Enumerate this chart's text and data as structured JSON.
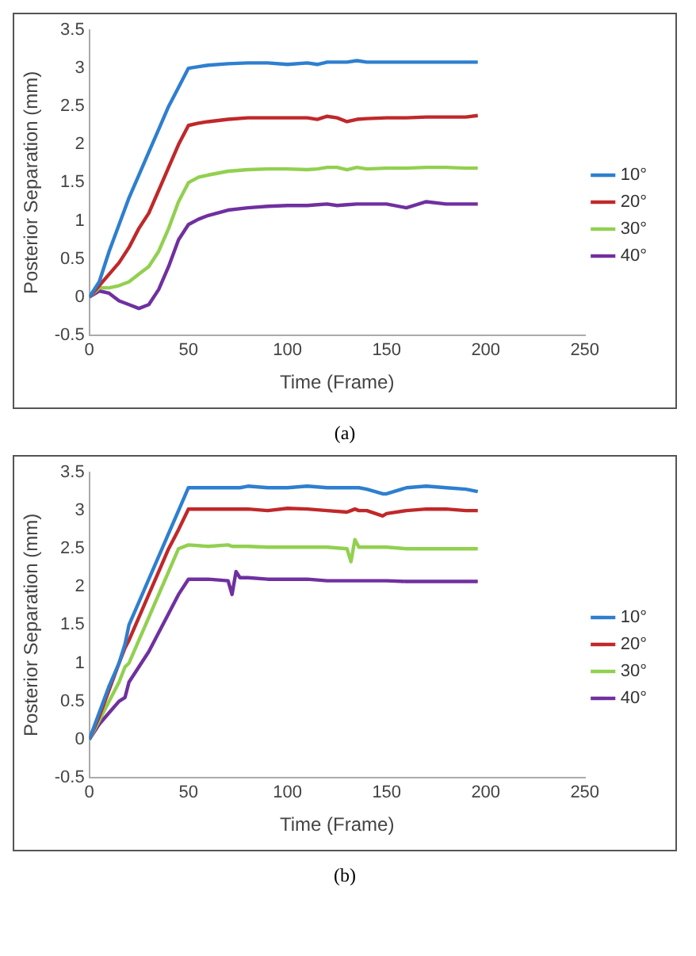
{
  "chart_data": [
    {
      "type": "line",
      "xlabel": "Time (Frame)",
      "ylabel": "Posterior Separation (mm)",
      "annotations": [
        "(a)"
      ],
      "x": [
        0,
        5,
        10,
        15,
        20,
        25,
        30,
        35,
        40,
        45,
        50,
        55,
        60,
        70,
        80,
        90,
        100,
        110,
        115,
        120,
        125,
        130,
        135,
        140,
        150,
        160,
        170,
        180,
        190,
        196
      ],
      "series": [
        {
          "name": "10°",
          "color": "#2e7fcf",
          "values": [
            0,
            0.2,
            0.6,
            0.95,
            1.3,
            1.6,
            1.9,
            2.2,
            2.5,
            2.75,
            3.0,
            3.02,
            3.04,
            3.06,
            3.07,
            3.07,
            3.05,
            3.07,
            3.05,
            3.08,
            3.08,
            3.08,
            3.1,
            3.08,
            3.08,
            3.08,
            3.08,
            3.08,
            3.08,
            3.08
          ]
        },
        {
          "name": "20°",
          "color": "#c0282a",
          "values": [
            0,
            0.15,
            0.3,
            0.45,
            0.65,
            0.9,
            1.1,
            1.4,
            1.7,
            2.0,
            2.25,
            2.28,
            2.3,
            2.33,
            2.35,
            2.35,
            2.35,
            2.35,
            2.33,
            2.37,
            2.35,
            2.3,
            2.33,
            2.34,
            2.35,
            2.35,
            2.36,
            2.36,
            2.36,
            2.38
          ]
        },
        {
          "name": "30°",
          "color": "#92d050",
          "values": [
            0,
            0.12,
            0.12,
            0.15,
            0.2,
            0.3,
            0.4,
            0.6,
            0.9,
            1.25,
            1.5,
            1.57,
            1.6,
            1.65,
            1.67,
            1.68,
            1.68,
            1.67,
            1.68,
            1.7,
            1.7,
            1.67,
            1.7,
            1.68,
            1.69,
            1.69,
            1.7,
            1.7,
            1.69,
            1.69
          ]
        },
        {
          "name": "40°",
          "color": "#7030a0",
          "values": [
            0,
            0.08,
            0.05,
            -0.05,
            -0.1,
            -0.15,
            -0.1,
            0.1,
            0.4,
            0.75,
            0.95,
            1.02,
            1.07,
            1.14,
            1.17,
            1.19,
            1.2,
            1.2,
            1.21,
            1.22,
            1.2,
            1.21,
            1.22,
            1.22,
            1.22,
            1.17,
            1.25,
            1.22,
            1.22,
            1.22
          ]
        }
      ],
      "xlim": [
        0,
        250
      ],
      "xticks": [
        0,
        50,
        100,
        150,
        200,
        250
      ],
      "ylim": [
        -0.5,
        3.5
      ],
      "yticks": [
        -0.5,
        0,
        0.5,
        1,
        1.5,
        2,
        2.5,
        3,
        3.5
      ],
      "legend": "right",
      "marker": "none",
      "line_style": "solid"
    },
    {
      "type": "line",
      "xlabel": "Time (Frame)",
      "ylabel": "Posterior Separation (mm)",
      "annotations": [
        "(b)"
      ],
      "x": [
        0,
        5,
        10,
        15,
        18,
        20,
        25,
        30,
        35,
        40,
        45,
        50,
        60,
        70,
        72,
        74,
        76,
        80,
        90,
        100,
        110,
        120,
        130,
        132,
        134,
        136,
        140,
        148,
        150,
        160,
        170,
        180,
        190,
        196
      ],
      "series": [
        {
          "name": "10°",
          "color": "#2e7fcf",
          "values": [
            0,
            0.35,
            0.7,
            1.0,
            1.25,
            1.5,
            1.8,
            2.1,
            2.4,
            2.7,
            3.0,
            3.3,
            3.3,
            3.3,
            3.3,
            3.3,
            3.3,
            3.32,
            3.3,
            3.3,
            3.32,
            3.3,
            3.3,
            3.3,
            3.3,
            3.3,
            3.28,
            3.22,
            3.22,
            3.3,
            3.32,
            3.3,
            3.28,
            3.25
          ]
        },
        {
          "name": "20°",
          "color": "#c0282a",
          "values": [
            0,
            0.3,
            0.65,
            1.0,
            1.2,
            1.3,
            1.6,
            1.9,
            2.2,
            2.5,
            2.75,
            3.02,
            3.02,
            3.02,
            3.02,
            3.02,
            3.02,
            3.02,
            3.0,
            3.03,
            3.02,
            3.0,
            2.98,
            3.0,
            3.02,
            3.0,
            3.0,
            2.93,
            2.96,
            3.0,
            3.02,
            3.02,
            3.0,
            3.0
          ]
        },
        {
          "name": "30°",
          "color": "#92d050",
          "values": [
            0,
            0.25,
            0.5,
            0.75,
            0.95,
            1.0,
            1.3,
            1.6,
            1.9,
            2.2,
            2.5,
            2.55,
            2.53,
            2.55,
            2.53,
            2.53,
            2.53,
            2.53,
            2.52,
            2.52,
            2.52,
            2.52,
            2.5,
            2.33,
            2.62,
            2.52,
            2.52,
            2.52,
            2.52,
            2.5,
            2.5,
            2.5,
            2.5,
            2.5
          ]
        },
        {
          "name": "40°",
          "color": "#7030a0",
          "values": [
            0,
            0.2,
            0.35,
            0.5,
            0.55,
            0.75,
            0.95,
            1.15,
            1.4,
            1.65,
            1.9,
            2.1,
            2.1,
            2.08,
            1.9,
            2.2,
            2.12,
            2.12,
            2.1,
            2.1,
            2.1,
            2.08,
            2.08,
            2.08,
            2.08,
            2.08,
            2.08,
            2.08,
            2.08,
            2.07,
            2.07,
            2.07,
            2.07,
            2.07
          ]
        }
      ],
      "xlim": [
        0,
        250
      ],
      "xticks": [
        0,
        50,
        100,
        150,
        200,
        250
      ],
      "ylim": [
        -0.5,
        3.5
      ],
      "yticks": [
        -0.5,
        0,
        0.5,
        1,
        1.5,
        2,
        2.5,
        3,
        3.5
      ],
      "legend": "right",
      "marker": "none",
      "line_style": "solid"
    }
  ]
}
